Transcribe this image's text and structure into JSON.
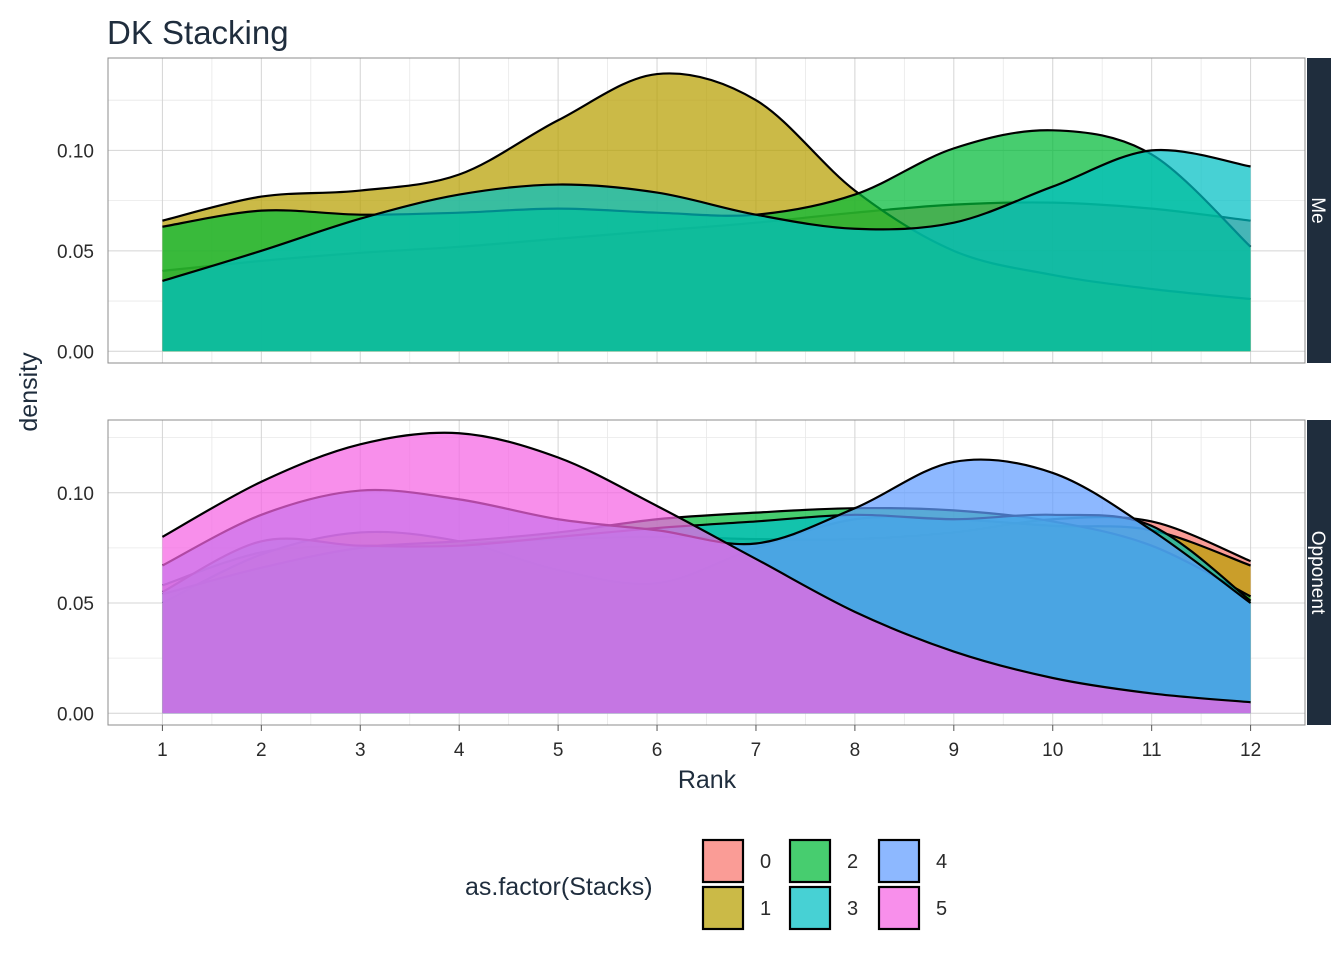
{
  "chart_data": {
    "type": "area",
    "title": "DK Stacking",
    "xlabel": "Rank",
    "ylabel": "density",
    "xlim": [
      1,
      12
    ],
    "x_ticks": [
      1,
      2,
      3,
      4,
      5,
      6,
      7,
      8,
      9,
      10,
      11,
      12
    ],
    "x": [
      1,
      2,
      3,
      4,
      5,
      6,
      7,
      8,
      9,
      10,
      11,
      12
    ],
    "legend": {
      "title": "as.factor(Stacks)",
      "placement": "bottom",
      "entries": [
        {
          "label": "0",
          "color": "#F8766D"
        },
        {
          "label": "1",
          "color": "#B79F00"
        },
        {
          "label": "2",
          "color": "#00BA38"
        },
        {
          "label": "3",
          "color": "#00BFC4"
        },
        {
          "label": "4",
          "color": "#619CFF"
        },
        {
          "label": "5",
          "color": "#F564E3"
        }
      ]
    },
    "panels": [
      {
        "strip": "Me",
        "ylim": [
          0,
          0.146
        ],
        "y_ticks": [
          0.0,
          0.05,
          0.1
        ],
        "y_tick_labels": [
          "0.00",
          "0.05",
          "0.10"
        ],
        "series": [
          {
            "name": "0",
            "color": "#F8766D",
            "values": [
              0.04,
              0.045,
              0.049,
              0.052,
              0.056,
              0.06,
              0.064,
              0.069,
              0.073,
              0.074,
              0.071,
              0.065
            ]
          },
          {
            "name": "1",
            "color": "#B79F00",
            "values": [
              0.065,
              0.077,
              0.08,
              0.088,
              0.115,
              0.138,
              0.125,
              0.08,
              0.05,
              0.038,
              0.031,
              0.026
            ]
          },
          {
            "name": "2",
            "color": "#00BA38",
            "values": [
              0.062,
              0.07,
              0.068,
              0.069,
              0.071,
              0.069,
              0.068,
              0.078,
              0.101,
              0.11,
              0.098,
              0.052
            ]
          },
          {
            "name": "3",
            "color": "#00BFC4",
            "values": [
              0.035,
              0.05,
              0.066,
              0.078,
              0.083,
              0.079,
              0.068,
              0.061,
              0.064,
              0.082,
              0.1,
              0.092
            ]
          }
        ]
      },
      {
        "strip": "Opponent",
        "ylim": [
          0,
          0.133
        ],
        "y_ticks": [
          0.0,
          0.05,
          0.1
        ],
        "y_tick_labels": [
          "0.00",
          "0.05",
          "0.10"
        ],
        "series": [
          {
            "name": "0",
            "color": "#F8766D",
            "values": [
              0.058,
              0.073,
              0.076,
              0.077,
              0.079,
              0.08,
              0.079,
              0.079,
              0.082,
              0.088,
              0.087,
              0.069
            ]
          },
          {
            "name": "1",
            "color": "#B79F00",
            "values": [
              0.05,
              0.072,
              0.082,
              0.078,
              0.065,
              0.059,
              0.075,
              0.088,
              0.088,
              0.085,
              0.083,
              0.067
            ]
          },
          {
            "name": "2",
            "color": "#00BA38",
            "values": [
              0.054,
              0.066,
              0.075,
              0.078,
              0.082,
              0.088,
              0.091,
              0.093,
              0.092,
              0.087,
              0.076,
              0.053
            ]
          },
          {
            "name": "3",
            "color": "#00BFC4",
            "values": [
              0.055,
              0.078,
              0.076,
              0.076,
              0.08,
              0.084,
              0.087,
              0.09,
              0.088,
              0.09,
              0.085,
              0.051
            ]
          },
          {
            "name": "4",
            "color": "#619CFF",
            "values": [
              0.067,
              0.09,
              0.101,
              0.097,
              0.088,
              0.083,
              0.077,
              0.093,
              0.114,
              0.109,
              0.083,
              0.05
            ]
          },
          {
            "name": "5",
            "color": "#F564E3",
            "values": [
              0.08,
              0.105,
              0.122,
              0.127,
              0.116,
              0.094,
              0.07,
              0.046,
              0.028,
              0.016,
              0.009,
              0.005
            ]
          }
        ]
      }
    ]
  }
}
